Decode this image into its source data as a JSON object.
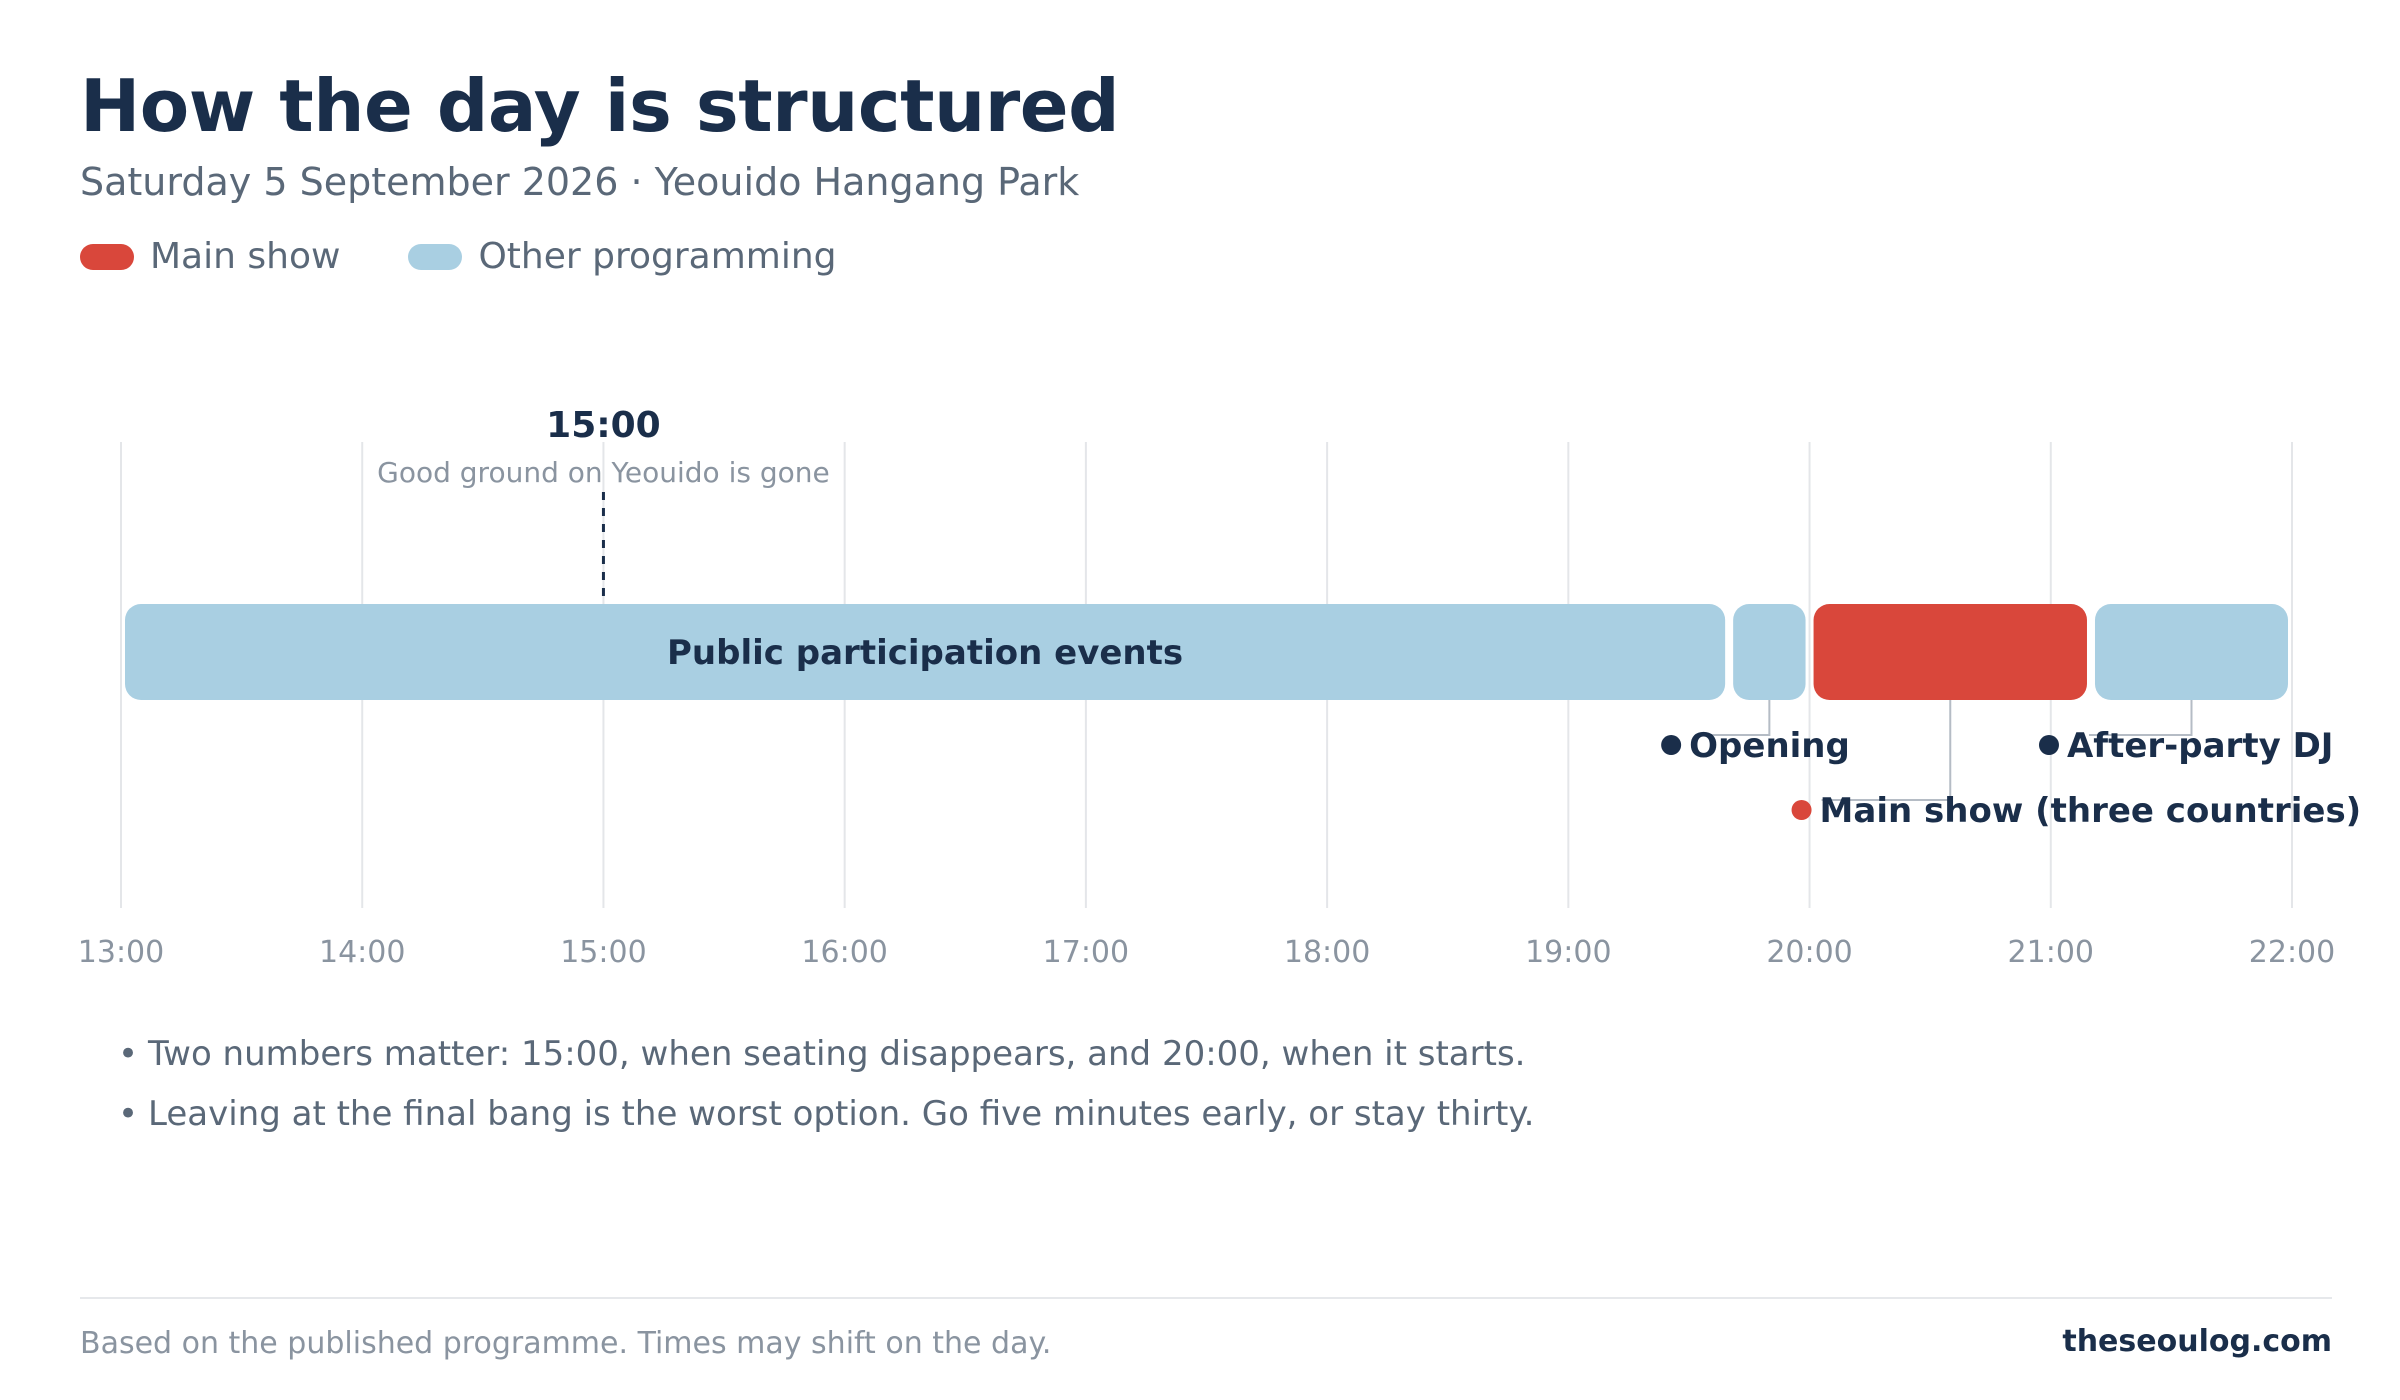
{
  "title": "How the day is structured",
  "subtitle": "Saturday 5 September 2026 · Yeouido Hangang Park",
  "legend": [
    {
      "label": "Main show",
      "color": "#d9473b"
    },
    {
      "label": "Other programming",
      "color": "#a9cfe2"
    }
  ],
  "chart_data": {
    "type": "timeline",
    "x_axis": {
      "min": "13:00",
      "max": "22:00",
      "ticks": [
        "13:00",
        "14:00",
        "15:00",
        "16:00",
        "17:00",
        "18:00",
        "19:00",
        "20:00",
        "21:00",
        "22:00"
      ]
    },
    "grid": true,
    "segments": [
      {
        "label": "Public participation events",
        "start": "13:00",
        "end": "19:40",
        "category": "Other programming",
        "color": "#a9cfe2"
      },
      {
        "label": "Opening",
        "start": "19:40",
        "end": "20:00",
        "category": "Other programming",
        "color": "#a9cfe2"
      },
      {
        "label": "Main show (three countries)",
        "start": "20:00",
        "end": "21:10",
        "category": "Main show",
        "color": "#d9473b"
      },
      {
        "label": "After-party DJ",
        "start": "21:10",
        "end": "22:00",
        "category": "Other programming",
        "color": "#a9cfe2"
      }
    ],
    "marker": {
      "time": "15:00",
      "label": "15:00",
      "note": "Good ground on Yeouido is gone"
    }
  },
  "notes": [
    "Two numbers matter: 15:00, when seating disappears, and 20:00, when it starts.",
    "Leaving at the final bang is the worst option. Go five minutes early, or stay thirty."
  ],
  "footer": {
    "source": "Based on the published programme. Times may shift on the day.",
    "site": "theseoulog.com"
  }
}
